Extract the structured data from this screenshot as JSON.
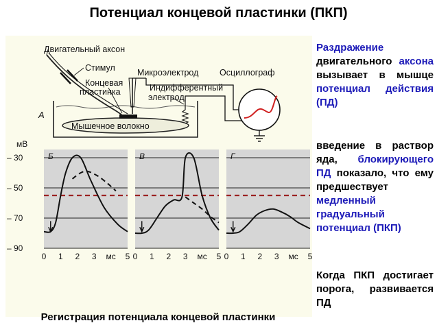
{
  "title": "Потенциал концевой пластинки (ПКП)",
  "diagram": {
    "labels": {
      "motor_axon": "Двигательный аксон",
      "stimulus": "Стимул",
      "microelectrode": "Микроэлектрод",
      "oscillograph": "Осциллограф",
      "end_plate_line1": "Концевая",
      "end_plate_line2": "пластинка",
      "indifferent_line1": "Индифферентный",
      "indifferent_line2": "электрод",
      "panel_a": "А",
      "muscle_fiber": "Мышечное волокно"
    },
    "colors": {
      "panel_bg": "#fbfbeb",
      "plot_bg": "#d6d6d6",
      "threshold": "#9b2222",
      "scope_trace": "#d02020",
      "highlight_text": "#1c1ab8"
    }
  },
  "charts": {
    "y_unit": "мВ",
    "y_ticks": [
      "– 30",
      "– 50",
      "– 70",
      "– 90"
    ],
    "x_unit": "мс",
    "x_ticks_per_panel": [
      "0",
      "1",
      "2",
      "3",
      "мс",
      "5"
    ],
    "panels": [
      {
        "label": "Б"
      },
      {
        "label": "В"
      },
      {
        "label": "Г"
      }
    ],
    "threshold_mv": -55
  },
  "chart_data": [
    {
      "type": "line",
      "panel": "Б",
      "ylabel": "мВ",
      "xlabel": "мс",
      "ylim": [
        -90,
        -30
      ],
      "xlim": [
        0,
        5
      ],
      "threshold": -55,
      "series": [
        {
          "x": [
            0,
            0.4,
            0.7,
            1.0,
            1.3,
            1.7,
            2.2,
            2.8,
            3.6,
            4.4,
            5.0
          ],
          "y": [
            -79,
            -79,
            -73,
            -55,
            -40,
            -30,
            -30,
            -45,
            -63,
            -74,
            -79
          ]
        },
        {
          "x": [
            1.7,
            2.2,
            2.6,
            3.2,
            3.8,
            4.3
          ],
          "y": [
            -44,
            -40,
            -39,
            -42,
            -47,
            -52
          ]
        }
      ]
    },
    {
      "type": "line",
      "panel": "В",
      "ylabel": "мВ",
      "xlabel": "мс",
      "ylim": [
        -90,
        -30
      ],
      "xlim": [
        0,
        5
      ],
      "threshold": -55,
      "series": [
        {
          "x": [
            0,
            0.4,
            0.8,
            1.3,
            1.8,
            2.3,
            2.8,
            3.0,
            3.5,
            4.0,
            4.5,
            5.0
          ],
          "y": [
            -80,
            -80,
            -78,
            -70,
            -62,
            -58,
            -56,
            -30,
            -30,
            -55,
            -70,
            -78
          ]
        },
        {
          "x": [
            3.0,
            3.5,
            4.0,
            4.5,
            5.0
          ],
          "y": [
            -56,
            -60,
            -64,
            -69,
            -73
          ]
        }
      ]
    },
    {
      "type": "line",
      "panel": "Г",
      "ylabel": "мВ",
      "xlabel": "мс",
      "ylim": [
        -90,
        -30
      ],
      "xlim": [
        0,
        5
      ],
      "threshold": -55,
      "series": [
        {
          "x": [
            0,
            0.4,
            0.8,
            1.3,
            1.8,
            2.3,
            2.8,
            3.3,
            3.8,
            4.3,
            5.0
          ],
          "y": [
            -80,
            -80,
            -79,
            -74,
            -68,
            -65,
            -64,
            -66,
            -69,
            -73,
            -77
          ]
        }
      ]
    }
  ],
  "caption": "Регистрация потенциала концевой пластинки",
  "side": {
    "block1": {
      "p1": "Раздражение",
      "p2": " двигательного ",
      "p3": "аксона",
      "p4": " вызывает в мышце ",
      "p5": "потенциал действия (ПД)"
    },
    "block2": {
      "p1": "введение в раствор яда, ",
      "p2": "блокирующего ПД",
      "p3": " показало, что ему предшествует ",
      "p4": "медленный градуальный потенциал (ПКП)"
    },
    "block3": "Когда ПКП достигает порога, развивается ПД"
  }
}
